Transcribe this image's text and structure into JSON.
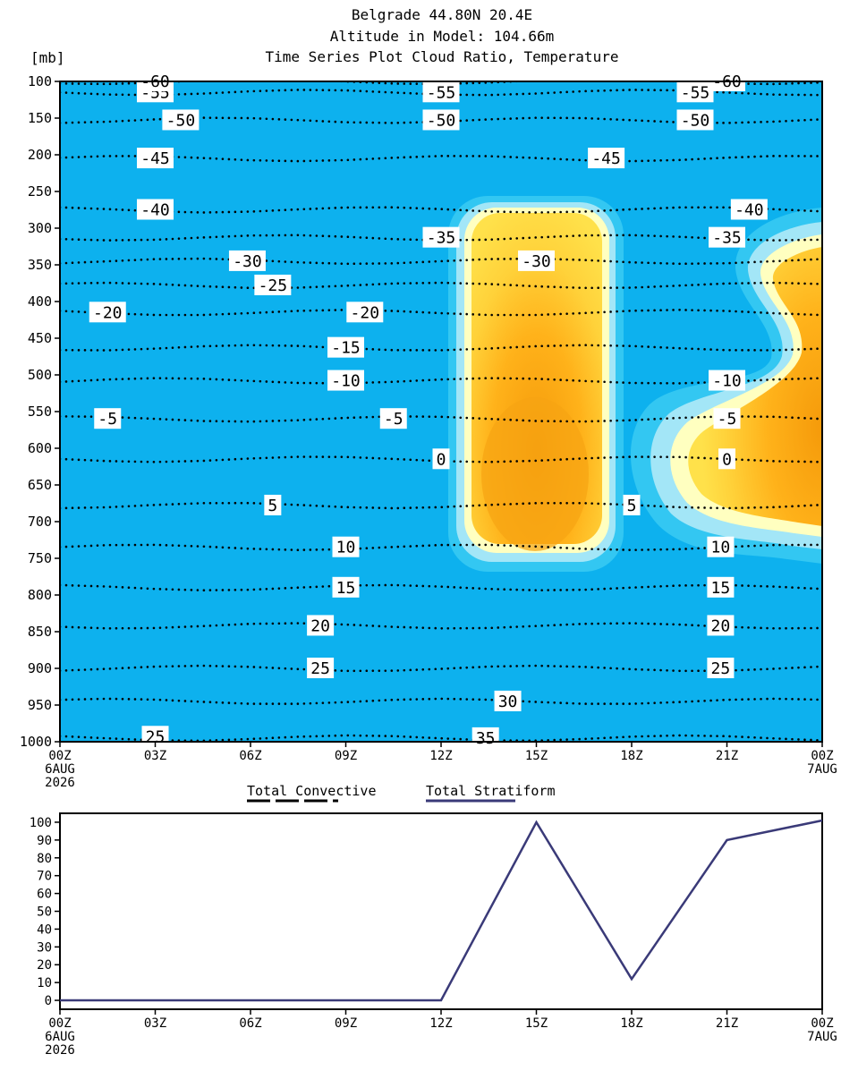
{
  "header": {
    "line1": "Belgrade   44.80N 20.4E",
    "line2": "Altitude in Model: 104.66m",
    "line3": "Time Series Plot Cloud Ratio, Temperature"
  },
  "colors": {
    "background_sky": "#0db1ee",
    "cloud_outer": "#33c7f2",
    "cloud_light": "#a3e6f7",
    "cloud_pale": "#ffffc0",
    "cloud_yellow": "#ffe14a",
    "cloud_orange": "#ffb21a",
    "cloud_core": "#f59a0a",
    "stratiform_line": "#3a3a78",
    "convective_line": "#000000"
  },
  "chart_data": [
    {
      "type": "heatmap",
      "title": "Time Series Plot Cloud Ratio, Temperature",
      "ylabel": "[mb]",
      "y_axis": {
        "ticks": [
          100,
          150,
          200,
          250,
          300,
          350,
          400,
          450,
          500,
          550,
          600,
          650,
          700,
          750,
          800,
          850,
          900,
          950,
          1000
        ],
        "range": [
          100,
          1000
        ],
        "inverted": true
      },
      "x_axis": {
        "ticks": [
          "00Z",
          "03Z",
          "06Z",
          "09Z",
          "12Z",
          "15Z",
          "18Z",
          "21Z",
          "00Z"
        ],
        "hours": [
          0,
          3,
          6,
          9,
          12,
          15,
          18,
          21,
          24
        ],
        "first_date": [
          "6AUG",
          "2026"
        ],
        "last_date": "7AUG"
      },
      "cloud_regions": [
        {
          "name": "cloud-column-1",
          "hours": [
            12.3,
            17.5
          ],
          "pressure_mb": [
            270,
            770
          ],
          "peak_at": {
            "hour": 15,
            "mb": 620
          }
        },
        {
          "name": "cloud-region-2",
          "hours": [
            19.5,
            24
          ],
          "pressure_mb": [
            290,
            750
          ],
          "peak_at": {
            "hour": 24,
            "mb": 600
          }
        }
      ],
      "temperature_contours": [
        {
          "value": -55,
          "mb": 115,
          "labels": [
            {
              "text": "-55",
              "hour": 3.0
            },
            {
              "text": "-55",
              "hour": 12.0
            },
            {
              "text": "-55",
              "hour": 20.0
            }
          ]
        },
        {
          "value": -50,
          "mb": 153,
          "labels": [
            {
              "text": "-50",
              "hour": 3.8
            },
            {
              "text": "-50",
              "hour": 12.0
            },
            {
              "text": "-50",
              "hour": 20.0
            }
          ]
        },
        {
          "value": -45,
          "mb": 205,
          "labels": [
            {
              "text": "-45",
              "hour": 3.0
            },
            {
              "text": "-45",
              "hour": 17.2
            }
          ]
        },
        {
          "value": -40,
          "mb": 275,
          "labels": [
            {
              "text": "-40",
              "hour": 3.0
            },
            {
              "text": "-40",
              "hour": 21.7
            }
          ]
        },
        {
          "value": -35,
          "mb": 313,
          "labels": [
            {
              "text": "-35",
              "hour": 12.0
            },
            {
              "text": "-35",
              "hour": 21.0
            }
          ]
        },
        {
          "value": -30,
          "mb": 345,
          "labels": [
            {
              "text": "-30",
              "hour": 5.9
            },
            {
              "text": "-30",
              "hour": 15.0
            }
          ]
        },
        {
          "value": -25,
          "mb": 378,
          "labels": [
            {
              "text": "-25",
              "hour": 6.7
            }
          ]
        },
        {
          "value": -20,
          "mb": 415,
          "labels": [
            {
              "text": "-20",
              "hour": 1.5
            },
            {
              "text": "-20",
              "hour": 9.6
            }
          ]
        },
        {
          "value": -15,
          "mb": 463,
          "labels": [
            {
              "text": "-15",
              "hour": 9.0
            }
          ]
        },
        {
          "value": -10,
          "mb": 508,
          "labels": [
            {
              "text": "-10",
              "hour": 9.0
            },
            {
              "text": "-10",
              "hour": 21.0
            }
          ]
        },
        {
          "value": -5,
          "mb": 560,
          "labels": [
            {
              "text": "-5",
              "hour": 1.5
            },
            {
              "text": "-5",
              "hour": 10.5
            },
            {
              "text": "-5",
              "hour": 21.0
            }
          ]
        },
        {
          "value": 0,
          "mb": 615,
          "labels": [
            {
              "text": "0",
              "hour": 12.0
            },
            {
              "text": "0",
              "hour": 21.0
            }
          ]
        },
        {
          "value": 5,
          "mb": 678,
          "labels": [
            {
              "text": "5",
              "hour": 6.7
            },
            {
              "text": "5",
              "hour": 18.0
            }
          ]
        },
        {
          "value": 10,
          "mb": 735,
          "labels": [
            {
              "text": "10",
              "hour": 9.0
            },
            {
              "text": "10",
              "hour": 20.8
            }
          ]
        },
        {
          "value": 15,
          "mb": 790,
          "labels": [
            {
              "text": "15",
              "hour": 9.0
            },
            {
              "text": "15",
              "hour": 20.8
            }
          ]
        },
        {
          "value": 20,
          "mb": 842,
          "labels": [
            {
              "text": "20",
              "hour": 8.2
            },
            {
              "text": "20",
              "hour": 20.8
            }
          ]
        },
        {
          "value": 25,
          "mb": 900,
          "labels": [
            {
              "text": "25",
              "hour": 8.2
            },
            {
              "text": "25",
              "hour": 20.8
            },
            {
              "text": "25",
              "hour": 3.0,
              "mb": 993
            }
          ]
        },
        {
          "value": 30,
          "mb": 945,
          "labels": [
            {
              "text": "30",
              "hour": 14.1
            }
          ]
        },
        {
          "value": 35,
          "mb": 995,
          "labels": [
            {
              "text": "35",
              "hour": 13.4
            }
          ]
        },
        {
          "value": -60,
          "mb": 100,
          "labels": [
            {
              "text": "-60",
              "hour": 3.0
            },
            {
              "text": "-60",
              "hour": 21.0
            }
          ]
        }
      ]
    },
    {
      "type": "line",
      "legend": [
        {
          "name": "Total Convective",
          "style": "dashed"
        },
        {
          "name": "Total Stratiform",
          "style": "solid"
        }
      ],
      "x_axis": {
        "ticks": [
          "00Z",
          "03Z",
          "06Z",
          "09Z",
          "12Z",
          "15Z",
          "18Z",
          "21Z",
          "00Z"
        ],
        "hours": [
          0,
          3,
          6,
          9,
          12,
          15,
          18,
          21,
          24
        ],
        "first_date": [
          "6AUG",
          "2026"
        ],
        "last_date": "7AUG"
      },
      "y_axis": {
        "ticks": [
          0,
          10,
          20,
          30,
          40,
          50,
          60,
          70,
          80,
          90,
          100
        ],
        "range": [
          -5,
          105
        ]
      },
      "series": [
        {
          "name": "Total Stratiform",
          "x": [
            0,
            3,
            6,
            9,
            12,
            15,
            18,
            21,
            24
          ],
          "values": [
            0,
            0,
            0,
            0,
            0,
            100,
            12,
            90,
            101
          ]
        }
      ]
    }
  ]
}
